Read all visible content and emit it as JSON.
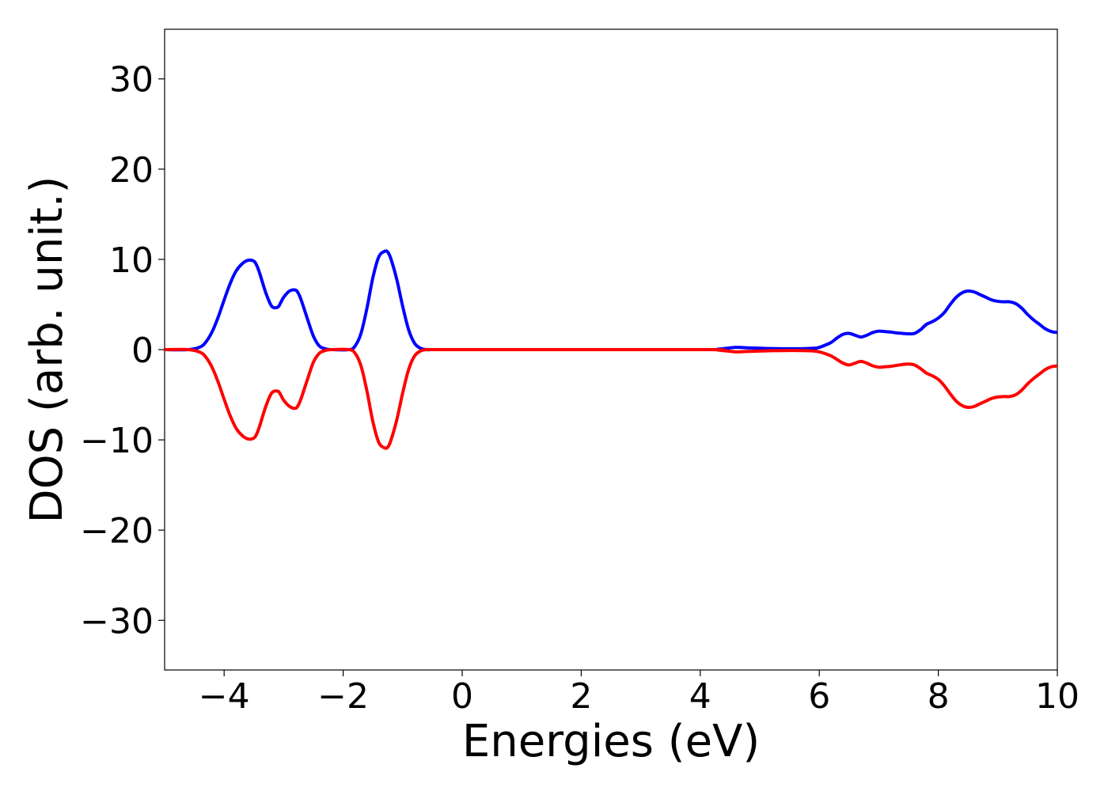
{
  "chart_data": {
    "type": "line",
    "title": "",
    "xlabel": "Energies (eV)",
    "ylabel": "DOS (arb. unit.)",
    "xlim": [
      -5,
      10
    ],
    "ylim": [
      -35.5,
      35.5
    ],
    "xticks": [
      -4,
      -2,
      0,
      2,
      4,
      6,
      8,
      10
    ],
    "yticks": [
      30,
      20,
      10,
      0,
      -10,
      -20,
      -30
    ],
    "xtick_labels": [
      "−4",
      "−2",
      "0",
      "2",
      "4",
      "6",
      "8",
      "10"
    ],
    "ytick_labels": [
      "30",
      "20",
      "10",
      "0",
      "−10",
      "−20",
      "−30"
    ],
    "grid": false,
    "legend": null,
    "series": [
      {
        "color": "#0000ff",
        "x": [
          -5.0,
          -4.6,
          -4.4,
          -4.3,
          -4.2,
          -4.1,
          -4.0,
          -3.9,
          -3.8,
          -3.7,
          -3.6,
          -3.5,
          -3.45,
          -3.4,
          -3.3,
          -3.2,
          -3.1,
          -3.05,
          -3.0,
          -2.9,
          -2.8,
          -2.75,
          -2.7,
          -2.6,
          -2.5,
          -2.4,
          -2.3,
          -2.2,
          -1.9,
          -1.8,
          -1.7,
          -1.6,
          -1.5,
          -1.4,
          -1.3,
          -1.25,
          -1.2,
          -1.1,
          -1.0,
          -0.9,
          -0.8,
          -0.7,
          -0.6,
          -0.5,
          0.0,
          4.0,
          4.3,
          4.6,
          4.8,
          5.2,
          5.6,
          5.9,
          6.0,
          6.1,
          6.2,
          6.3,
          6.4,
          6.5,
          6.6,
          6.7,
          6.8,
          6.9,
          7.0,
          7.1,
          7.2,
          7.3,
          7.4,
          7.5,
          7.6,
          7.7,
          7.8,
          7.9,
          8.0,
          8.1,
          8.2,
          8.3,
          8.4,
          8.5,
          8.6,
          8.7,
          8.8,
          8.9,
          9.0,
          9.1,
          9.2,
          9.3,
          9.4,
          9.5,
          9.6,
          9.7,
          9.8,
          9.9,
          10.0
        ],
        "values": [
          0.0,
          0.0,
          0.3,
          0.9,
          2.0,
          3.6,
          5.5,
          7.3,
          8.7,
          9.5,
          9.9,
          9.8,
          9.3,
          8.4,
          6.3,
          4.8,
          4.7,
          5.2,
          5.8,
          6.5,
          6.6,
          6.2,
          5.4,
          3.4,
          1.5,
          0.4,
          0.1,
          0.0,
          0.0,
          0.4,
          1.8,
          4.6,
          8.0,
          10.3,
          10.9,
          10.8,
          10.1,
          7.8,
          4.8,
          2.2,
          0.7,
          0.15,
          0.0,
          0.0,
          0.0,
          0.0,
          0.05,
          0.25,
          0.2,
          0.12,
          0.1,
          0.15,
          0.25,
          0.5,
          0.8,
          1.3,
          1.7,
          1.8,
          1.6,
          1.4,
          1.6,
          1.9,
          2.05,
          2.0,
          1.95,
          1.85,
          1.8,
          1.75,
          1.8,
          2.2,
          2.8,
          3.1,
          3.5,
          4.1,
          5.0,
          5.8,
          6.3,
          6.5,
          6.4,
          6.1,
          5.8,
          5.5,
          5.35,
          5.3,
          5.3,
          5.1,
          4.6,
          3.9,
          3.3,
          2.8,
          2.3,
          2.0,
          1.9
        ]
      },
      {
        "color": "#ff0000",
        "x": [
          -5.0,
          -4.6,
          -4.4,
          -4.3,
          -4.2,
          -4.1,
          -4.0,
          -3.9,
          -3.8,
          -3.7,
          -3.6,
          -3.5,
          -3.45,
          -3.4,
          -3.3,
          -3.2,
          -3.1,
          -3.05,
          -3.0,
          -2.9,
          -2.8,
          -2.75,
          -2.7,
          -2.6,
          -2.5,
          -2.4,
          -2.3,
          -2.2,
          -1.9,
          -1.8,
          -1.7,
          -1.6,
          -1.5,
          -1.4,
          -1.3,
          -1.25,
          -1.2,
          -1.1,
          -1.0,
          -0.9,
          -0.8,
          -0.7,
          -0.6,
          -0.5,
          0.0,
          4.0,
          4.3,
          4.6,
          4.8,
          5.2,
          5.6,
          5.9,
          6.0,
          6.1,
          6.2,
          6.3,
          6.4,
          6.5,
          6.6,
          6.7,
          6.8,
          6.9,
          7.0,
          7.1,
          7.2,
          7.3,
          7.4,
          7.5,
          7.6,
          7.7,
          7.8,
          7.9,
          8.0,
          8.1,
          8.2,
          8.3,
          8.4,
          8.5,
          8.6,
          8.7,
          8.8,
          8.9,
          9.0,
          9.1,
          9.2,
          9.3,
          9.4,
          9.5,
          9.6,
          9.7,
          9.8,
          9.9,
          10.0
        ],
        "values": [
          0.0,
          0.0,
          -0.3,
          -0.9,
          -2.0,
          -3.6,
          -5.5,
          -7.3,
          -8.7,
          -9.5,
          -9.9,
          -9.8,
          -9.3,
          -8.4,
          -6.3,
          -4.8,
          -4.6,
          -5.0,
          -5.6,
          -6.3,
          -6.5,
          -6.1,
          -5.3,
          -3.3,
          -1.4,
          -0.4,
          -0.1,
          0.0,
          0.0,
          -0.4,
          -1.8,
          -4.6,
          -8.0,
          -10.3,
          -10.9,
          -10.8,
          -10.1,
          -7.8,
          -4.8,
          -2.2,
          -0.7,
          -0.15,
          0.0,
          0.0,
          0.0,
          0.0,
          -0.05,
          -0.25,
          -0.2,
          -0.12,
          -0.1,
          -0.15,
          -0.25,
          -0.45,
          -0.7,
          -1.1,
          -1.5,
          -1.7,
          -1.5,
          -1.3,
          -1.5,
          -1.8,
          -1.95,
          -1.9,
          -1.85,
          -1.75,
          -1.65,
          -1.6,
          -1.7,
          -2.1,
          -2.6,
          -2.9,
          -3.3,
          -4.0,
          -4.9,
          -5.7,
          -6.2,
          -6.4,
          -6.3,
          -6.0,
          -5.7,
          -5.4,
          -5.25,
          -5.2,
          -5.2,
          -5.0,
          -4.5,
          -3.8,
          -3.2,
          -2.7,
          -2.2,
          -1.9,
          -1.8
        ]
      }
    ]
  }
}
